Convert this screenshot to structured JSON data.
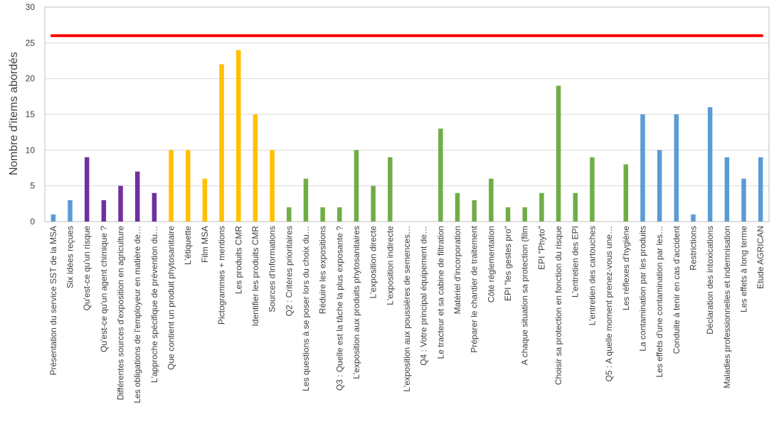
{
  "chart_data": {
    "type": "bar",
    "ylabel": "Nombre d'items abordés",
    "ylim": [
      0,
      30
    ],
    "yticks": [
      0,
      5,
      10,
      15,
      20,
      25,
      30
    ],
    "grid": true,
    "reference_line": {
      "value": 26,
      "color": "#ff0000"
    },
    "categories": [
      "Présentation du service SST de la MSA",
      "Six idées reçues",
      "Qu'est-ce qu'un risque",
      "Qu'est-ce qu'un agent chimique ?",
      "Différentes sources d'exposition en agriculture",
      "Les obligations de l'employeur en matière de…",
      "L'approche spécifique de prévention du…",
      "Que contient un produit phytosanitaire",
      "L'étiquette",
      "Film MSA",
      "Pictogrammes + mentions",
      "Les produits CMR",
      "Identifier les produits CMR",
      "Sources d'informations",
      "Q2 : Critères prioritaires",
      "Les questions à se poser lors du choix du…",
      "Réduire les expositions",
      "Q3 : Quelle est la tâche la plus exposante ?",
      "L'exposition aux produits phytosanitaires",
      "L'exposition directe",
      "L'exposition indirecte",
      "L'exposition aux poussières de semences…",
      "Q4 : Votre principal équipement de…",
      "Le tracteur et sa cabine de filtration",
      "Matériel d'incorporation",
      "Préparer le chantier de traitement",
      "Côté réglementation",
      "EPI \"les gestes pro\"",
      "A chaque situation sa protection (film",
      "EPI \"Phyto\"",
      "Choisir sa protection en fonction du risque",
      "L'entretien des EPI",
      "L'entretien des cartouches",
      "Q5 : A quelle moment prenez-vous une…",
      "Les réflexes d'hygiène",
      "La contamination par les produits",
      "Les effets d'une contamination par les…",
      "Conduite à tenir en cas d'accident",
      "Restrictions",
      "Déclaration des intoxications",
      "Maladies professionnelles et indemnisation",
      "Les effets à long terme",
      "Etude AGRICAN"
    ],
    "values": [
      1,
      3,
      9,
      3,
      5,
      7,
      4,
      10,
      10,
      6,
      22,
      24,
      15,
      10,
      2,
      6,
      2,
      2,
      10,
      5,
      9,
      0,
      0,
      13,
      4,
      3,
      6,
      2,
      2,
      4,
      19,
      4,
      9,
      0,
      8,
      15,
      10,
      15,
      1,
      16,
      9,
      6,
      9
    ],
    "bar_colors": [
      "#5b9bd5",
      "#5b9bd5",
      "#7030a0",
      "#7030a0",
      "#7030a0",
      "#7030a0",
      "#7030a0",
      "#ffc000",
      "#ffc000",
      "#ffc000",
      "#ffc000",
      "#ffc000",
      "#ffc000",
      "#ffc000",
      "#70ad47",
      "#70ad47",
      "#70ad47",
      "#70ad47",
      "#70ad47",
      "#70ad47",
      "#70ad47",
      "#70ad47",
      "#70ad47",
      "#70ad47",
      "#70ad47",
      "#70ad47",
      "#70ad47",
      "#70ad47",
      "#70ad47",
      "#70ad47",
      "#70ad47",
      "#70ad47",
      "#70ad47",
      "#70ad47",
      "#70ad47",
      "#5b9bd5",
      "#5b9bd5",
      "#5b9bd5",
      "#5b9bd5",
      "#5b9bd5",
      "#5b9bd5",
      "#5b9bd5",
      "#5b9bd5"
    ]
  }
}
